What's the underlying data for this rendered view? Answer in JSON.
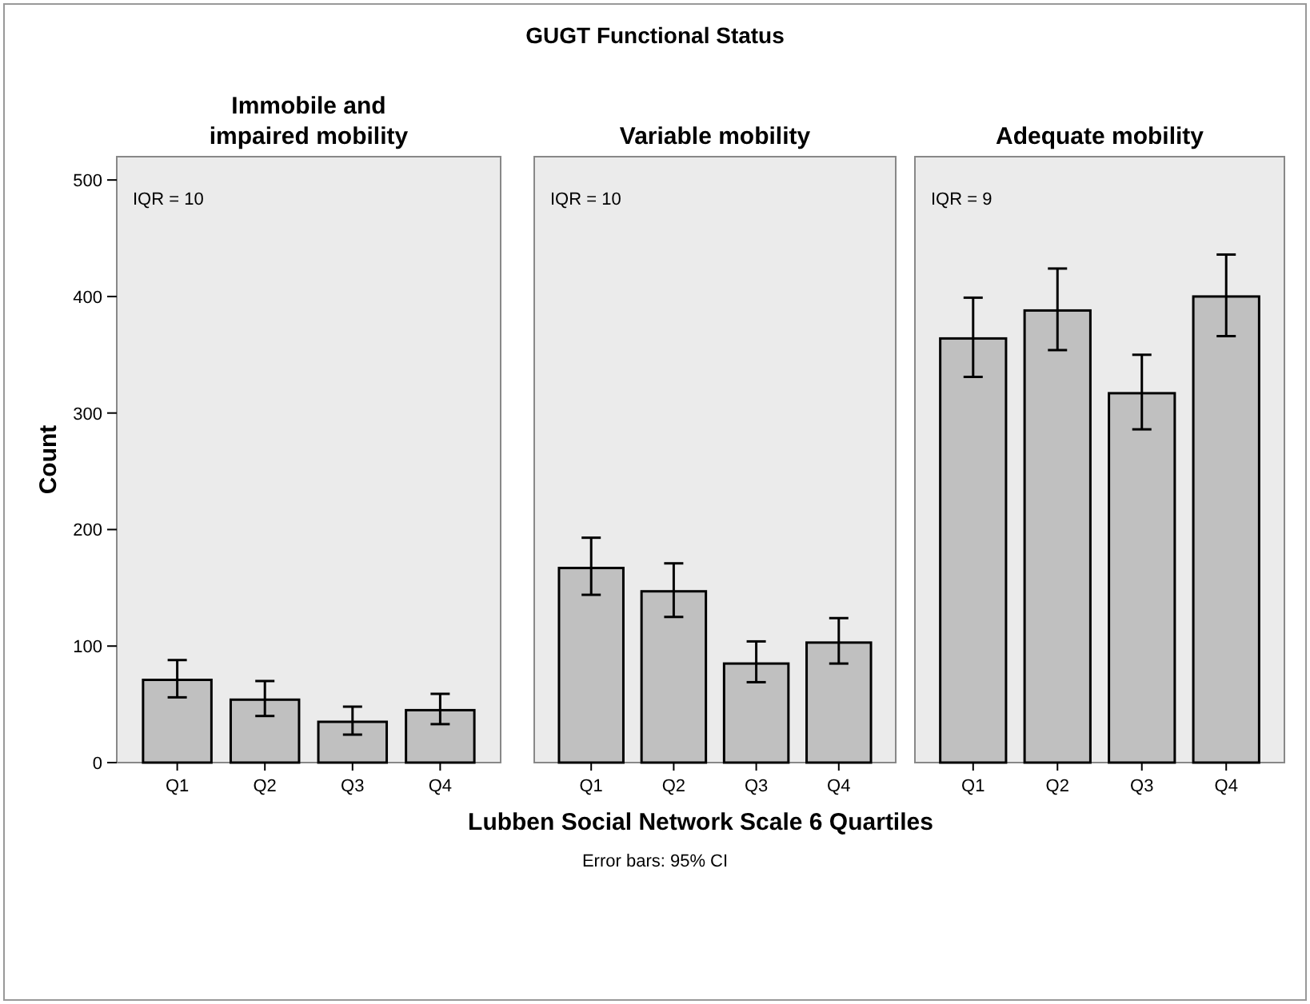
{
  "chart_data": [
    {
      "type": "bar",
      "title": "Immobile and impaired mobility",
      "ylabel": "Count",
      "categories": [
        "Q1",
        "Q2",
        "Q3",
        "Q4"
      ],
      "values": [
        71,
        54,
        35,
        45
      ],
      "errors": [
        [
          56,
          88
        ],
        [
          40,
          70
        ],
        [
          24,
          48
        ],
        [
          33,
          59
        ]
      ],
      "color": "#c0c0c0",
      "ylim": [
        0,
        520
      ],
      "yticks": [
        0,
        100,
        200,
        300,
        400,
        500
      ],
      "annotations": [
        "IQR = 10"
      ]
    },
    {
      "type": "bar",
      "title": "Variable mobility",
      "xlabel": "Lubben Social Network Scale 6 Quartiles",
      "categories": [
        "Q1",
        "Q2",
        "Q3",
        "Q4"
      ],
      "values": [
        167,
        147,
        85,
        103
      ],
      "errors": [
        [
          144,
          193
        ],
        [
          125,
          171
        ],
        [
          69,
          104
        ],
        [
          85,
          124
        ]
      ],
      "color": "#c0c0c0",
      "ylim": [
        0,
        520
      ],
      "tick_labels": "x",
      "annotations": [
        "IQR = 10",
        "GUGT Functional Status",
        "Error bars: 95% CI"
      ]
    },
    {
      "type": "bar",
      "title": "Adequate mobility",
      "categories": [
        "Q1",
        "Q2",
        "Q3",
        "Q4"
      ],
      "values": [
        364,
        388,
        317,
        400
      ],
      "errors": [
        [
          331,
          399
        ],
        [
          354,
          424
        ],
        [
          286,
          350
        ],
        [
          366,
          436
        ]
      ],
      "color": "#c0c0c0",
      "ylim": [
        0,
        520
      ],
      "tick_labels": "x",
      "annotations": [
        "IQR = 9"
      ]
    }
  ]
}
